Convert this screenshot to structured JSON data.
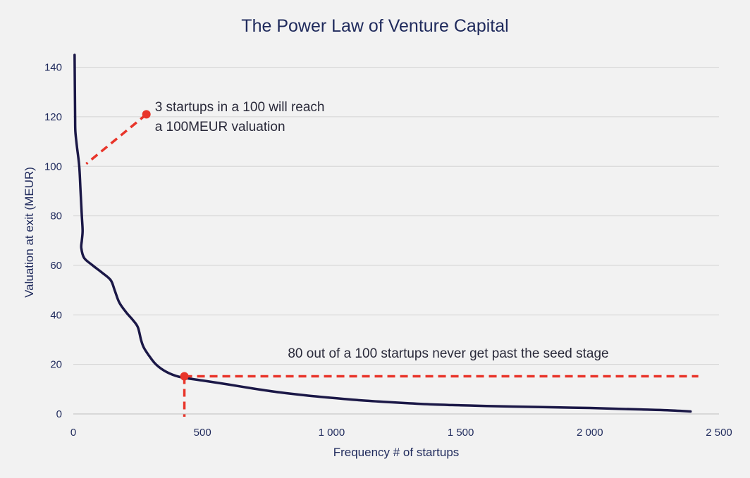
{
  "chart_data": {
    "type": "line",
    "title": "The Power Law of Venture Capital",
    "xlabel": "Frequency # of startups",
    "ylabel": "Valuation at exit (MEUR)",
    "xlim": [
      0,
      2500
    ],
    "ylim": [
      0,
      145
    ],
    "x_ticks": [
      0,
      500,
      1000,
      1500,
      2000,
      2500
    ],
    "x_tick_labels": [
      "0",
      "500",
      "1 000",
      "1 500",
      "2 000",
      "2 500"
    ],
    "y_ticks": [
      0,
      20,
      40,
      60,
      80,
      100,
      120,
      140
    ],
    "y_tick_labels": [
      "0",
      "20",
      "40",
      "60",
      "80",
      "100",
      "120",
      "140"
    ],
    "grid": true,
    "colors": {
      "series": "#1b1847",
      "annotation": "#e8352a",
      "text": "#1f2a5c",
      "background": "#f2f2f2"
    },
    "series": [
      {
        "values": [
          [
            5,
            145
          ],
          [
            6,
            132
          ],
          [
            7,
            120
          ],
          [
            8,
            114
          ],
          [
            14,
            108
          ],
          [
            23,
            100
          ],
          [
            28,
            90
          ],
          [
            33,
            80
          ],
          [
            36,
            74
          ],
          [
            33,
            70
          ],
          [
            31,
            67
          ],
          [
            42,
            63
          ],
          [
            75,
            60
          ],
          [
            112,
            57
          ],
          [
            145,
            54
          ],
          [
            160,
            50
          ],
          [
            178,
            45
          ],
          [
            205,
            41
          ],
          [
            230,
            38
          ],
          [
            250,
            35
          ],
          [
            262,
            30
          ],
          [
            272,
            27
          ],
          [
            290,
            24
          ],
          [
            320,
            20
          ],
          [
            360,
            17
          ],
          [
            410,
            15
          ],
          [
            500,
            13.5
          ],
          [
            600,
            11.9
          ],
          [
            700,
            10.2
          ],
          [
            800,
            8.7
          ],
          [
            900,
            7.5
          ],
          [
            1000,
            6.5
          ],
          [
            1100,
            5.6
          ],
          [
            1200,
            4.9
          ],
          [
            1300,
            4.3
          ],
          [
            1400,
            3.8
          ],
          [
            1500,
            3.5
          ],
          [
            1600,
            3.2
          ],
          [
            1700,
            3.0
          ],
          [
            1800,
            2.8
          ],
          [
            1900,
            2.6
          ],
          [
            2000,
            2.4
          ],
          [
            2100,
            2.1
          ],
          [
            2200,
            1.8
          ],
          [
            2300,
            1.5
          ],
          [
            2390,
            1.0
          ]
        ]
      }
    ],
    "annotations": [
      {
        "lines": [
          "3 startups in a 100 will reach",
          "a 100MEUR valuation"
        ],
        "marker": [
          283,
          121
        ],
        "leader_end": [
          50,
          101
        ]
      },
      {
        "lines": [
          "80 out of a 100 startups never get past the seed stage"
        ],
        "marker": [
          430,
          15.2
        ],
        "horizontal_to_x": 2420,
        "vertical_to_y": 0
      }
    ]
  }
}
